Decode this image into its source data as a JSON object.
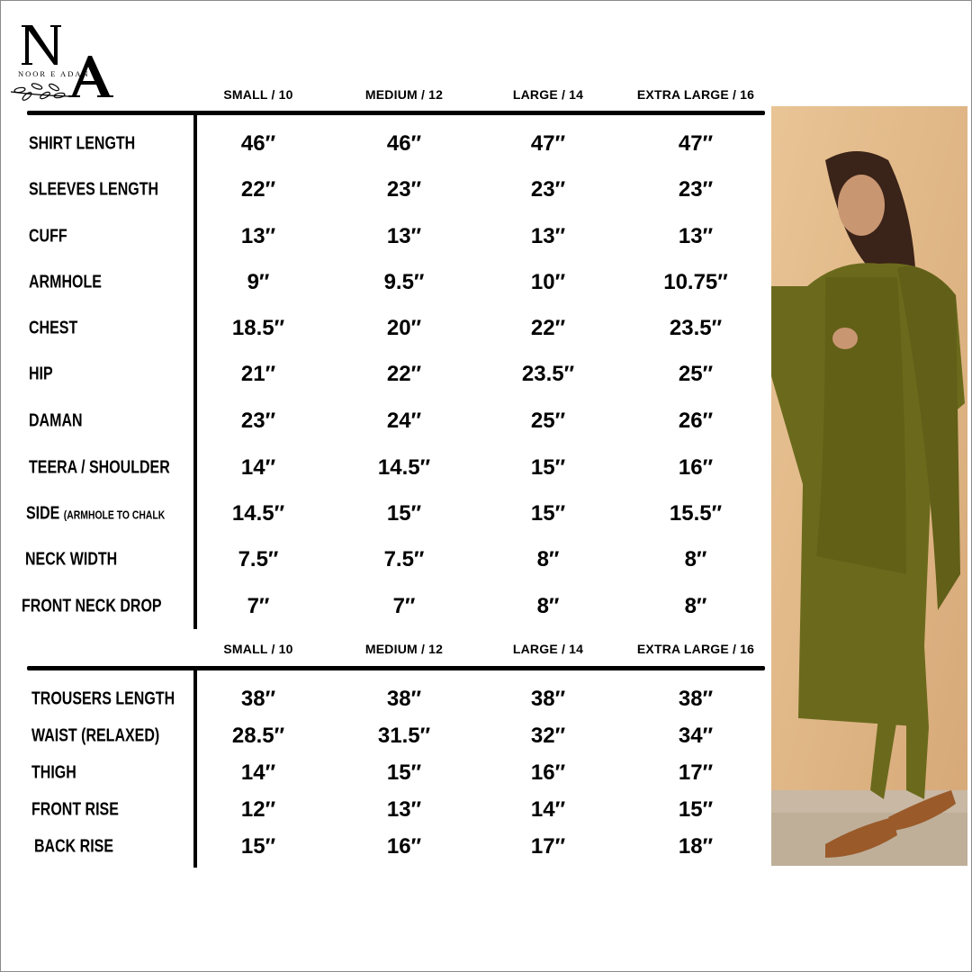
{
  "brand": {
    "logo_letters": "NA",
    "name": "NOOR E ADAN"
  },
  "shirt_table": {
    "headers": [
      "SMALL / 10",
      "MEDIUM / 12",
      "LARGE / 14",
      "EXTRA LARGE / 16"
    ],
    "rows": [
      {
        "label": "SHIRT LENGTH",
        "values": [
          "46″",
          "46″",
          "47″",
          "47″"
        ]
      },
      {
        "label": "SLEEVES LENGTH",
        "values": [
          "22″",
          "23″",
          "23″",
          "23″"
        ]
      },
      {
        "label": "CUFF",
        "values": [
          "13″",
          "13″",
          "13″",
          "13″"
        ]
      },
      {
        "label": "ARMHOLE",
        "values": [
          "9″",
          "9.5″",
          "10″",
          "10.75″"
        ]
      },
      {
        "label": "CHEST",
        "values": [
          "18.5″",
          "20″",
          "22″",
          "23.5″"
        ]
      },
      {
        "label": "HIP",
        "values": [
          "21″",
          "22″",
          "23.5″",
          "25″"
        ]
      },
      {
        "label": "DAMAN",
        "values": [
          "23″",
          "24″",
          "25″",
          "26″"
        ]
      },
      {
        "label": "TEERA / SHOULDER",
        "values": [
          "14″",
          "14.5″",
          "15″",
          "16″"
        ]
      },
      {
        "label": "SIDE",
        "label_note": "(ARMHOLE TO CHALK",
        "values": [
          "14.5″",
          "15″",
          "15″",
          "15.5″"
        ]
      },
      {
        "label": "NECK WIDTH",
        "values": [
          "7.5″",
          "7.5″",
          "8″",
          "8″"
        ]
      },
      {
        "label": "FRONT NECK DROP",
        "values": [
          "7″",
          "7″",
          "8″",
          "8″"
        ]
      }
    ]
  },
  "trouser_table": {
    "headers": [
      "SMALL / 10",
      "MEDIUM / 12",
      "LARGE / 14",
      "EXTRA LARGE / 16"
    ],
    "rows": [
      {
        "label": "TROUSERS LENGTH",
        "values": [
          "38″",
          "38″",
          "38″",
          "38″"
        ]
      },
      {
        "label": "WAIST (RELAXED)",
        "values": [
          "28.5″",
          "31.5″",
          "32″",
          "34″"
        ]
      },
      {
        "label": "THIGH",
        "values": [
          "14″",
          "15″",
          "16″",
          "17″"
        ]
      },
      {
        "label": "FRONT RISE",
        "values": [
          "12″",
          "13″",
          "14″",
          "15″"
        ]
      },
      {
        "label": "BACK RISE",
        "values": [
          "15″",
          "16″",
          "17″",
          "18″"
        ]
      }
    ]
  },
  "colors": {
    "outfit": "#6b6a1c",
    "background_wall": "#e3b98a",
    "text": "#000000"
  }
}
